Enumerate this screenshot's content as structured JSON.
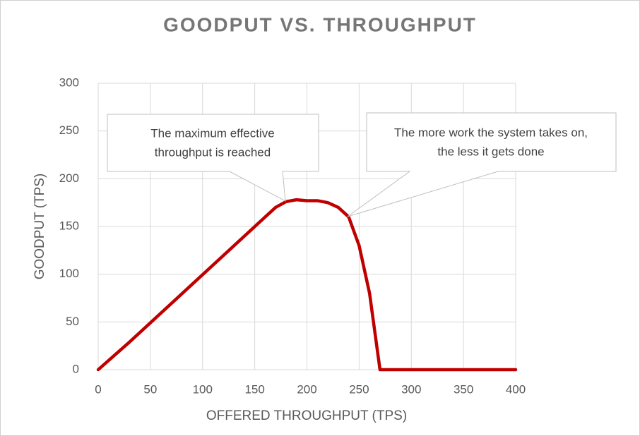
{
  "chart_data": {
    "type": "line",
    "title": "GOODPUT VS. THROUGHPUT",
    "x_label": "OFFERED THROUGHPUT (TPS)",
    "y_label": "GOODPUT (TPS)",
    "x": [
      0,
      30,
      170,
      180,
      190,
      200,
      210,
      220,
      230,
      240,
      250,
      260,
      270,
      400
    ],
    "values": [
      0,
      29,
      170,
      176,
      178,
      177,
      177,
      175,
      170,
      160,
      130,
      80,
      0,
      0
    ],
    "color": "#c00000",
    "xlim": [
      0,
      400
    ],
    "xticks": [
      0,
      50,
      100,
      150,
      200,
      250,
      300,
      350,
      400
    ],
    "ylim": [
      0,
      300
    ],
    "yticks": [
      0,
      50,
      100,
      150,
      200,
      250,
      300
    ],
    "grid": true,
    "annotations": [
      {
        "text": [
          "The maximum effective",
          "throughput is reached"
        ]
      },
      {
        "text": [
          "The more work the system takes on,",
          "the less it gets done"
        ]
      }
    ]
  }
}
